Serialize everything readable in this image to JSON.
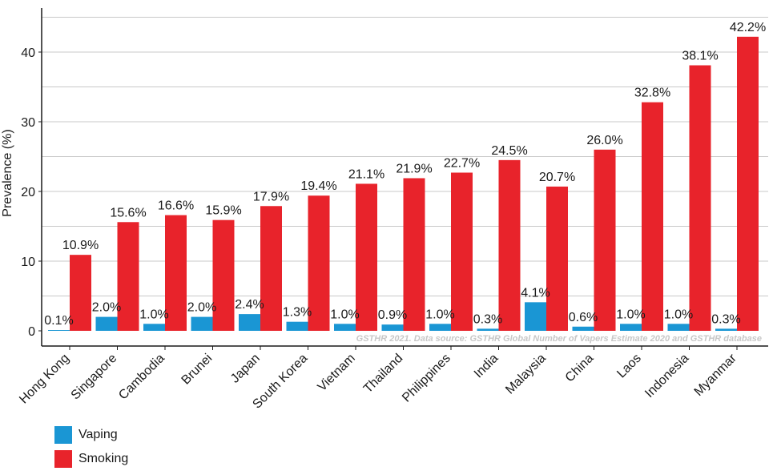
{
  "colors": {
    "vaping": "#1a96d4",
    "smoking": "#e8232b",
    "grid": "#c8c8c8",
    "axis": "#1a1a1a"
  },
  "chart_data": {
    "type": "bar",
    "ylabel": "Prevalence (%)",
    "ylim": [
      0,
      45
    ],
    "yticks": [
      "0",
      "10",
      "20",
      "30",
      "40"
    ],
    "grid": true,
    "legend_position": "bottom-left",
    "source_note": "GSTHR 2021. Data source: GSTHR Global Number of Vapers Estimate 2020 and GSTHR database",
    "categories": [
      "Hong Kong",
      "Singapore",
      "Cambodia",
      "Brunei",
      "Japan",
      "South Korea",
      "Vietnam",
      "Thailand",
      "Philippines",
      "India",
      "Malaysia",
      "China",
      "Laos",
      "Indonesia",
      "Myanmar"
    ],
    "series": [
      {
        "name": "Vaping",
        "values": [
          0.1,
          2.0,
          1.0,
          2.0,
          2.4,
          1.3,
          1.0,
          0.9,
          1.0,
          0.3,
          4.1,
          0.6,
          1.0,
          1.0,
          0.3
        ],
        "labels": [
          "0.1%",
          "2.0%",
          "1.0%",
          "2.0%",
          "2.4%",
          "1.3%",
          "1.0%",
          "0.9%",
          "1.0%",
          "0.3%",
          "4.1%",
          "0.6%",
          "1.0%",
          "1.0%",
          "0.3%"
        ]
      },
      {
        "name": "Smoking",
        "values": [
          10.9,
          15.6,
          16.6,
          15.9,
          17.9,
          19.4,
          21.1,
          21.9,
          22.7,
          24.5,
          20.7,
          26.0,
          32.8,
          38.1,
          42.2
        ],
        "labels": [
          "10.9%",
          "15.6%",
          "16.6%",
          "15.9%",
          "17.9%",
          "19.4%",
          "21.1%",
          "21.9%",
          "22.7%",
          "24.5%",
          "20.7%",
          "26.0%",
          "32.8%",
          "38.1%",
          "42.2%"
        ]
      }
    ]
  },
  "legend": [
    {
      "label": "Vaping",
      "color": "#1a96d4"
    },
    {
      "label": "Smoking",
      "color": "#e8232b"
    }
  ]
}
